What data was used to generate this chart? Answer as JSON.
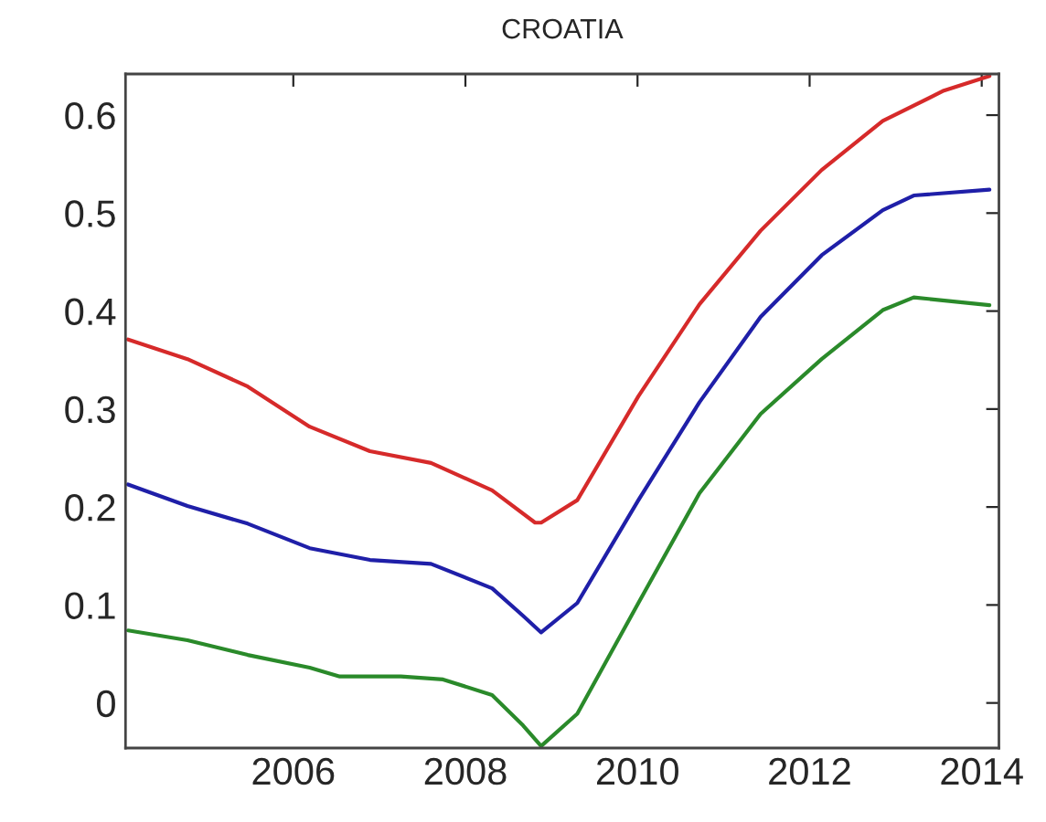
{
  "chart_data": {
    "type": "line",
    "title": "CROATIA",
    "xlim": [
      2004.05,
      2014.2
    ],
    "xticks": [
      2006,
      2008,
      2010,
      2012,
      2014
    ],
    "ylim": [
      -0.046,
      0.642
    ],
    "yticks": [
      0,
      0.1,
      0.2,
      0.3,
      0.4,
      0.5,
      0.6
    ],
    "grid": false,
    "legend": false,
    "marker": "none",
    "line_style": "solid",
    "series": [
      {
        "color": "#d62a2a",
        "x": [
          2004.08,
          2004.77,
          2005.47,
          2006.19,
          2006.89,
          2007.6,
          2008.31,
          2008.81,
          2008.88,
          2009.3,
          2010.01,
          2010.72,
          2011.43,
          2012.14,
          2012.85,
          2013.56,
          2014.09
        ],
        "values": [
          0.371,
          0.351,
          0.323,
          0.282,
          0.257,
          0.245,
          0.217,
          0.184,
          0.184,
          0.207,
          0.313,
          0.407,
          0.482,
          0.544,
          0.594,
          0.625,
          0.64
        ]
      },
      {
        "color": "#1f1fa8",
        "x": [
          2004.08,
          2004.77,
          2005.47,
          2006.19,
          2006.89,
          2007.6,
          2008.31,
          2008.67,
          2008.88,
          2009.3,
          2010.01,
          2010.72,
          2011.43,
          2012.14,
          2012.85,
          2013.21,
          2014.09
        ],
        "values": [
          0.223,
          0.201,
          0.183,
          0.158,
          0.146,
          0.142,
          0.117,
          0.089,
          0.072,
          0.102,
          0.207,
          0.307,
          0.394,
          0.457,
          0.503,
          0.518,
          0.524
        ]
      },
      {
        "color": "#2a8a2a",
        "x": [
          2004.08,
          2004.77,
          2005.47,
          2006.19,
          2006.54,
          2007.25,
          2007.74,
          2008.31,
          2008.67,
          2008.88,
          2009.3,
          2010.01,
          2010.72,
          2011.43,
          2012.14,
          2012.85,
          2013.21,
          2014.09
        ],
        "values": [
          0.074,
          0.064,
          0.049,
          0.036,
          0.027,
          0.027,
          0.024,
          0.008,
          -0.023,
          -0.044,
          -0.011,
          0.102,
          0.214,
          0.295,
          0.351,
          0.401,
          0.414,
          0.406
        ]
      }
    ]
  }
}
